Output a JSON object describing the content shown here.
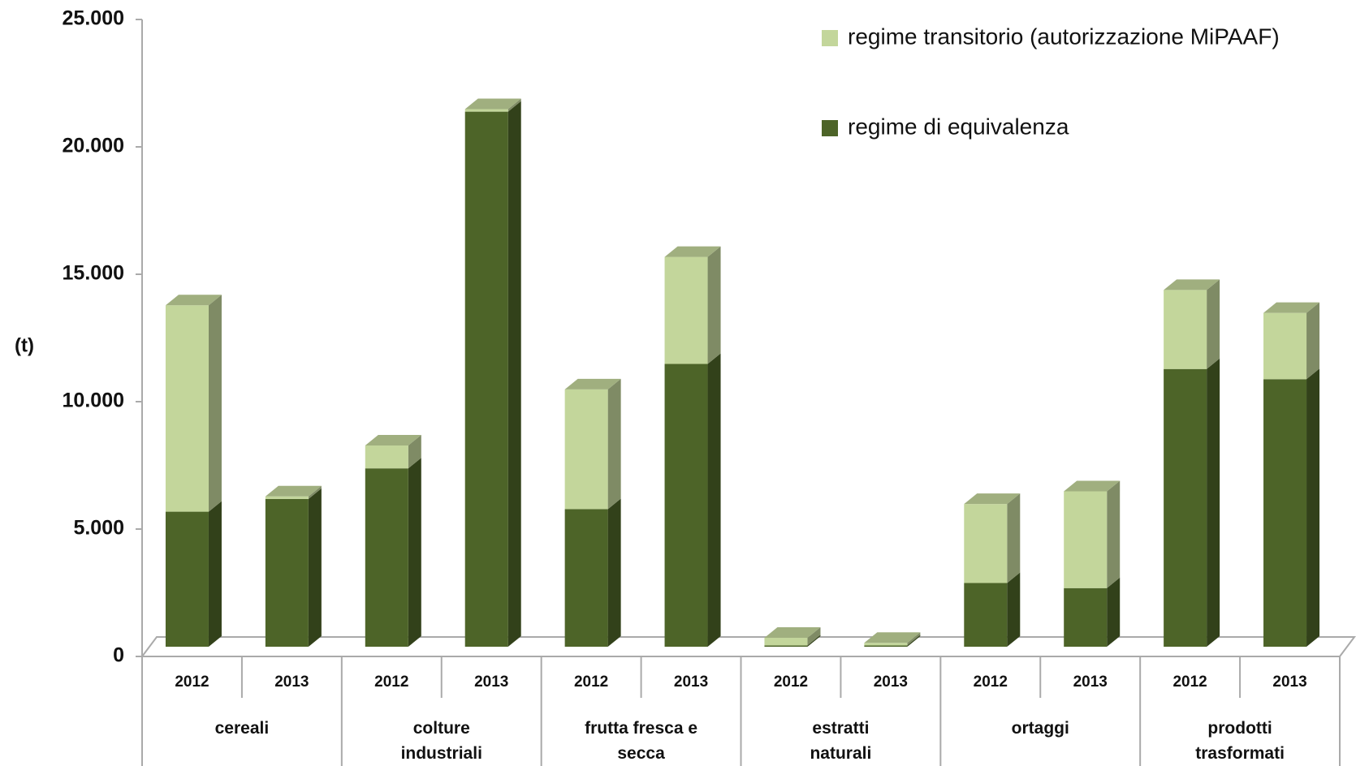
{
  "chart_data": {
    "type": "bar3d_stacked",
    "y_label": "(t)",
    "categories": [
      "2012",
      "2013",
      "2012",
      "2013",
      "2012",
      "2013",
      "2012",
      "2013",
      "2012",
      "2013",
      "2012",
      "2013"
    ],
    "groups": [
      "cereali",
      "colture industriali",
      "frutta fresca e secca",
      "estratti naturali",
      "ortaggi",
      "prodotti trasformati"
    ],
    "series": [
      {
        "name": "regime di equivalenza",
        "color": "#4d6428",
        "values": [
          5300,
          5800,
          7000,
          21000,
          5400,
          11100,
          50,
          50,
          2500,
          2300,
          10900,
          10500
        ]
      },
      {
        "name": "regime transitorio (autorizzazione MiPAAF)",
        "color": "#c3d69b",
        "values": [
          8100,
          100,
          900,
          100,
          4700,
          4200,
          300,
          100,
          3100,
          3800,
          3100,
          2600
        ]
      }
    ],
    "legend_order": [
      1,
      0
    ],
    "ylim": [
      0,
      25000
    ],
    "yticks": [
      0,
      {
        "value": 5000,
        "label": "5.000"
      },
      {
        "value": 10000,
        "label": "10.000"
      },
      {
        "value": 15000,
        "label": "15.000"
      },
      {
        "value": 20000,
        "label": "20.000"
      },
      {
        "value": 25000,
        "label": "25.000"
      }
    ]
  }
}
